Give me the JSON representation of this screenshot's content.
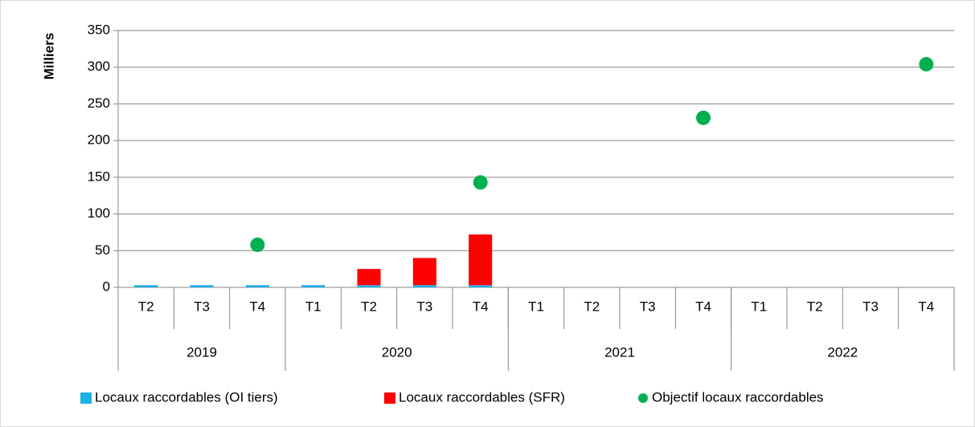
{
  "chart_data": {
    "type": "bar",
    "stacked": true,
    "y_label": "Milliers",
    "categories": [
      "T2",
      "T3",
      "T4",
      "T1",
      "T2",
      "T3",
      "T4",
      "T1",
      "T2",
      "T3",
      "T4",
      "T1",
      "T2",
      "T3",
      "T4"
    ],
    "groups": [
      {
        "name": "2019",
        "count": 3
      },
      {
        "name": "2020",
        "count": 4
      },
      {
        "name": "2021",
        "count": 4
      },
      {
        "name": "2022",
        "count": 4
      }
    ],
    "series": [
      {
        "name": "Locaux raccordables (OI tiers)",
        "type": "bar",
        "color": "#1fb0e6",
        "values": [
          3,
          3,
          3,
          3,
          3,
          3,
          3,
          null,
          null,
          null,
          null,
          null,
          null,
          null,
          null
        ]
      },
      {
        "name": "Locaux raccordables (SFR)",
        "type": "bar",
        "color": "#ff0000",
        "values": [
          null,
          null,
          null,
          null,
          22,
          37,
          69,
          null,
          null,
          null,
          null,
          null,
          null,
          null,
          null
        ]
      },
      {
        "name": "Objectif locaux raccordables",
        "type": "scatter",
        "color": "#00b050",
        "values": [
          null,
          null,
          58,
          null,
          null,
          null,
          143,
          null,
          null,
          null,
          231,
          null,
          null,
          null,
          304
        ]
      }
    ],
    "ylim": [
      0,
      350
    ],
    "yticks": [
      0,
      50,
      100,
      150,
      200,
      250,
      300,
      350
    ],
    "grid": true,
    "legend": "bottom"
  }
}
